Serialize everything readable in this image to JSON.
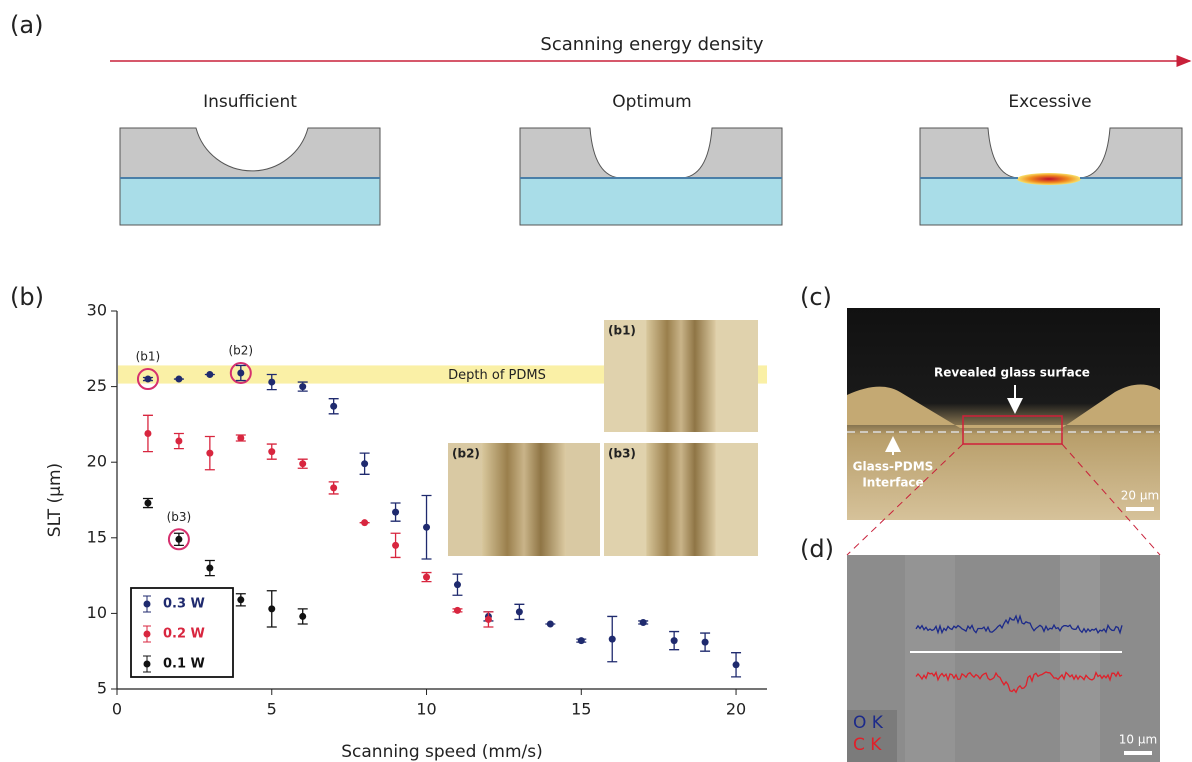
{
  "panel_a": {
    "label": "(a)",
    "axis_title": "Scanning energy density",
    "stages": [
      "Insufficient",
      "Optimum",
      "Excessive"
    ]
  },
  "panel_b_label": "(b)",
  "chart_data": {
    "type": "scatter",
    "xlabel": "Scanning speed (mm/s)",
    "ylabel": "SLT (μm)",
    "xlim": [
      0,
      21
    ],
    "ylim": [
      5,
      30
    ],
    "xticks": [
      0,
      5,
      10,
      15,
      20
    ],
    "yticks": [
      5,
      10,
      15,
      20,
      25,
      30
    ],
    "legend": "lower left",
    "series": [
      {
        "name": "0.3 W",
        "color": "#1f2a6e",
        "x": [
          1,
          2,
          3,
          4,
          5,
          6,
          7,
          8,
          9,
          10,
          11,
          12,
          13,
          14,
          15,
          16,
          17,
          18,
          19,
          20
        ],
        "values": [
          25.5,
          25.5,
          25.8,
          25.9,
          25.3,
          25.0,
          23.7,
          19.9,
          16.7,
          15.7,
          11.9,
          9.8,
          10.1,
          9.3,
          8.2,
          8.3,
          9.4,
          8.2,
          8.1,
          6.6
        ],
        "errors": [
          0.1,
          0,
          0,
          0.5,
          0.5,
          0.3,
          0.5,
          0.7,
          0.6,
          2.1,
          0.7,
          0.3,
          0.5,
          0,
          0.1,
          1.5,
          0.1,
          0.6,
          0.6,
          0.8
        ]
      },
      {
        "name": "0.2 W",
        "color": "#d8263f",
        "x": [
          1,
          2,
          3,
          4,
          5,
          6,
          7,
          8,
          9,
          10,
          11,
          12
        ],
        "values": [
          21.9,
          21.4,
          20.6,
          21.6,
          20.7,
          19.9,
          18.3,
          16.0,
          14.5,
          12.4,
          10.2,
          9.6
        ],
        "errors": [
          1.2,
          0.5,
          1.1,
          0.2,
          0.5,
          0.3,
          0.4,
          0,
          0.8,
          0.3,
          0.1,
          0.5
        ]
      },
      {
        "name": "0.1 W",
        "color": "#111111",
        "x": [
          1,
          2,
          3,
          4,
          5,
          6
        ],
        "values": [
          17.3,
          14.9,
          13.0,
          10.9,
          10.3,
          9.8
        ],
        "errors": [
          0.3,
          0.4,
          0.5,
          0.4,
          1.2,
          0.5
        ]
      }
    ],
    "band": {
      "label": "Depth of PDMS",
      "range": [
        25.2,
        26.4
      ]
    },
    "annotations": [
      {
        "text": "(b1)",
        "x": 1,
        "y": 25.5
      },
      {
        "text": "(b2)",
        "x": 4,
        "y": 25.9
      },
      {
        "text": "(b3)",
        "x": 2,
        "y": 14.9
      }
    ],
    "insets": [
      "(b1)",
      "(b2)",
      "(b3)"
    ]
  },
  "panel_c": {
    "label": "(c)",
    "annotations": [
      "Revealed glass surface",
      "Glass-PDMS",
      "Interface"
    ],
    "scale_bar": "20 μm"
  },
  "panel_d": {
    "label": "(d)",
    "elements": [
      "O K",
      "C K"
    ],
    "scale_bar": "10 μm"
  }
}
